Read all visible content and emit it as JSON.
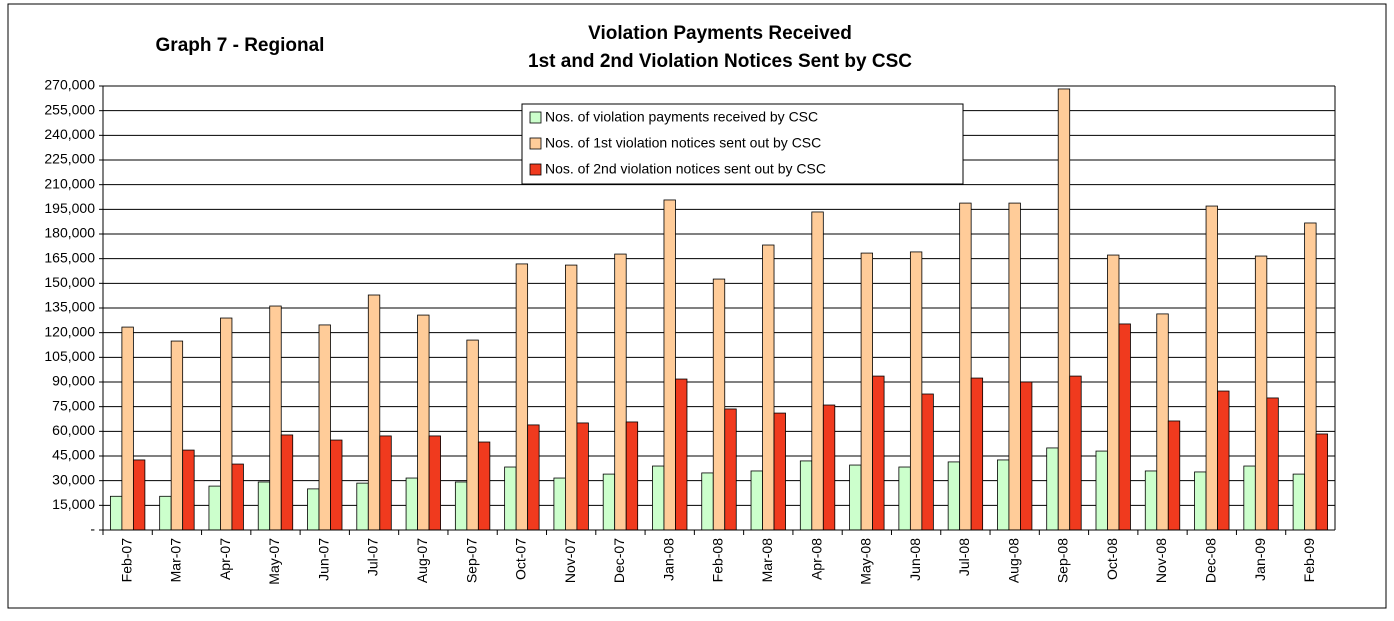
{
  "chart_data": {
    "type": "bar",
    "title": [
      "Violation Payments Received",
      "1st and 2nd Violation Notices Sent by CSC"
    ],
    "annotation": "Graph 7 - Regional",
    "categories": [
      "Feb-07",
      "Mar-07",
      "Apr-07",
      "May-07",
      "Jun-07",
      "Jul-07",
      "Aug-07",
      "Sep-07",
      "Oct-07",
      "Nov-07",
      "Dec-07",
      "Jan-08",
      "Feb-08",
      "Mar-08",
      "Apr-08",
      "May-08",
      "Jun-08",
      "Jul-08",
      "Aug-08",
      "Sep-08",
      "Oct-08",
      "Nov-08",
      "Dec-08",
      "Jan-09",
      "Feb-09"
    ],
    "series": [
      {
        "name": "Nos. of violation payments received by CSC",
        "color": "#ccffcc",
        "values": [
          20500,
          20500,
          26700,
          29200,
          25000,
          28500,
          31600,
          29200,
          38300,
          31600,
          34000,
          38900,
          34700,
          35900,
          42000,
          39500,
          38300,
          41400,
          42600,
          49900,
          48000,
          35900,
          35300,
          38900,
          34000
        ]
      },
      {
        "name": "Nos. of 1st violation notices sent out by CSC",
        "color": "#ffcc99",
        "values": [
          123400,
          114900,
          128900,
          136200,
          124700,
          142900,
          130700,
          115500,
          161800,
          161100,
          167800,
          200700,
          152600,
          173300,
          193400,
          168400,
          169100,
          198800,
          198800,
          268200,
          167200,
          131400,
          197000,
          166600,
          186700
        ]
      },
      {
        "name": "Nos. of 2nd violation notices sent out by CSC",
        "color": "#f03a1e",
        "values": [
          42600,
          48600,
          40100,
          57800,
          54700,
          57200,
          57200,
          53500,
          63900,
          65100,
          65700,
          91800,
          73600,
          71100,
          76000,
          93600,
          82700,
          92400,
          90000,
          93600,
          125300,
          66300,
          84500,
          80300,
          58400
        ]
      }
    ],
    "ylim": [
      0,
      270000
    ],
    "yticks": [
      {
        "value": 0,
        "label": "-"
      },
      {
        "value": 15000,
        "label": "15,000"
      },
      {
        "value": 30000,
        "label": "30,000"
      },
      {
        "value": 45000,
        "label": "45,000"
      },
      {
        "value": 60000,
        "label": "60,000"
      },
      {
        "value": 75000,
        "label": "75,000"
      },
      {
        "value": 90000,
        "label": "90,000"
      },
      {
        "value": 105000,
        "label": "105,000"
      },
      {
        "value": 120000,
        "label": "120,000"
      },
      {
        "value": 135000,
        "label": "135,000"
      },
      {
        "value": 150000,
        "label": "150,000"
      },
      {
        "value": 165000,
        "label": "165,000"
      },
      {
        "value": 180000,
        "label": "180,000"
      },
      {
        "value": 195000,
        "label": "195,000"
      },
      {
        "value": 210000,
        "label": "210,000"
      },
      {
        "value": 225000,
        "label": "225,000"
      },
      {
        "value": 240000,
        "label": "240,000"
      },
      {
        "value": 255000,
        "label": "255,000"
      },
      {
        "value": 270000,
        "label": "270,000"
      }
    ],
    "grid": true
  }
}
